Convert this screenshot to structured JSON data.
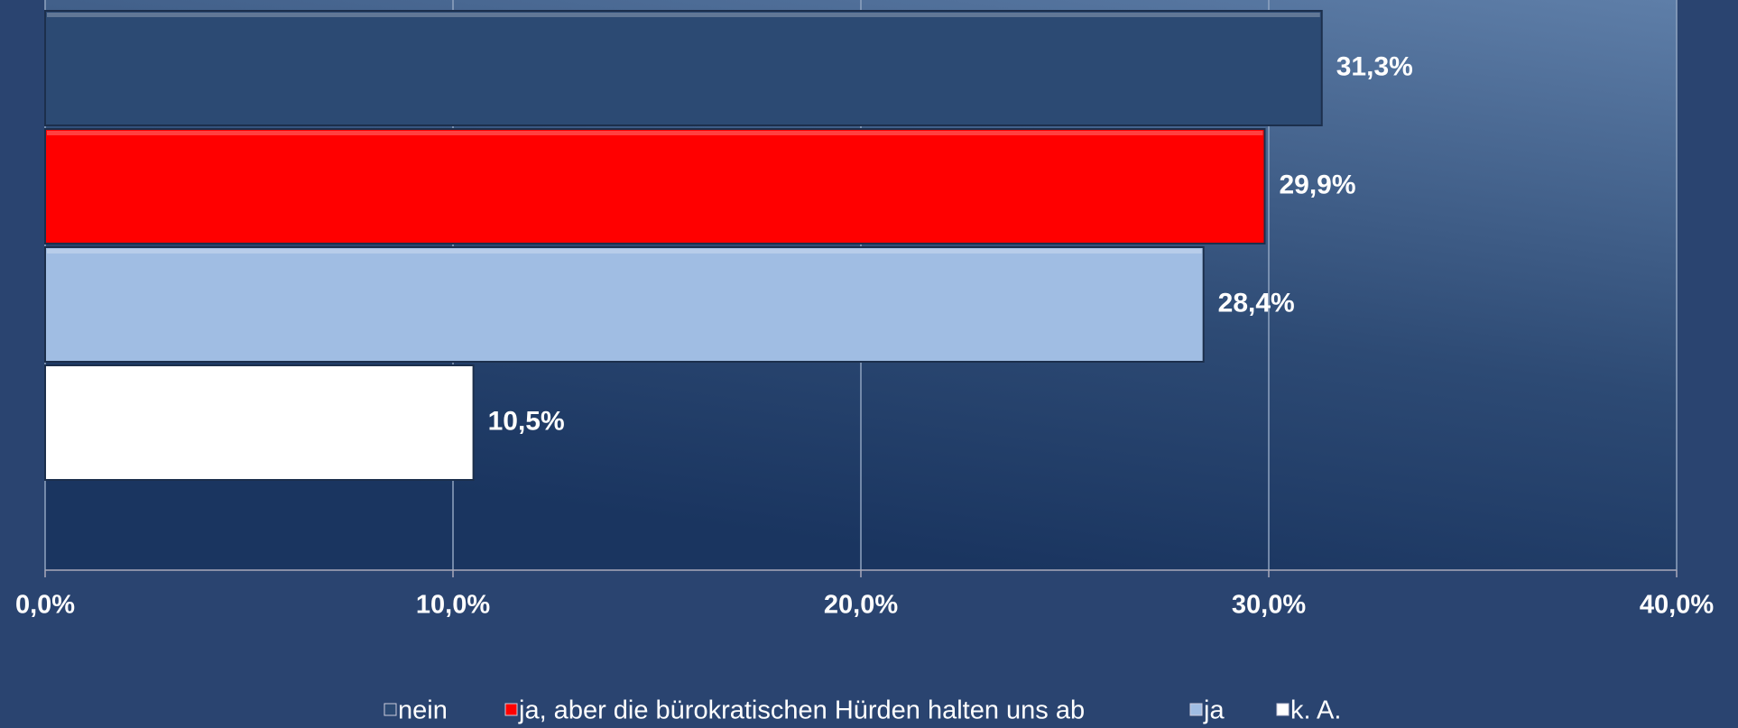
{
  "chart_data": {
    "type": "bar",
    "orientation": "horizontal",
    "categories": [
      null
    ],
    "series": [
      {
        "name": "nein",
        "color": "#2c4a73",
        "values": [
          31.3
        ],
        "value_labels": [
          "31,3%"
        ]
      },
      {
        "name": "ja, aber die bürokratischen Hürden halten uns ab",
        "color": "#ff0000",
        "values": [
          29.9
        ],
        "value_labels": [
          "29,9%"
        ]
      },
      {
        "name": "ja",
        "color": "#a0bde3",
        "values": [
          28.4
        ],
        "value_labels": [
          "28,4%"
        ]
      },
      {
        "name": "k. A.",
        "color": "#ffffff",
        "values": [
          10.5
        ],
        "value_labels": [
          "10,5%"
        ]
      }
    ],
    "xlim": [
      0,
      40
    ],
    "xticks": [
      {
        "value": 0,
        "label": "0,0%"
      },
      {
        "value": 10,
        "label": "10,0%"
      },
      {
        "value": 20,
        "label": "20,0%"
      },
      {
        "value": 30,
        "label": "30,0%"
      },
      {
        "value": 40,
        "label": "40,0%"
      }
    ],
    "grid": true,
    "legend": "bottom"
  }
}
